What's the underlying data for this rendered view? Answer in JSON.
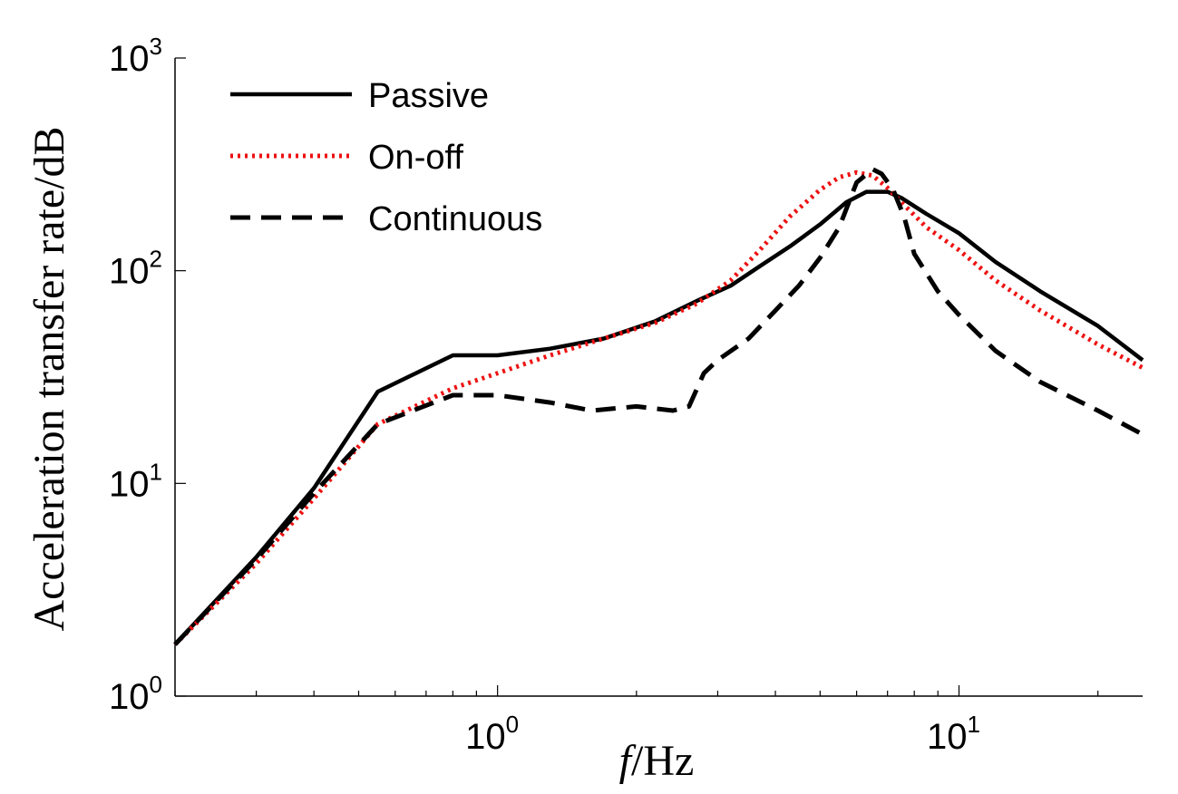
{
  "chart_data": {
    "type": "line",
    "title": "",
    "xlabel_italic": "f",
    "xlabel_rest": "/Hz",
    "ylabel": "Acceleration transfer rate/dB",
    "xscale": "log",
    "yscale": "log",
    "xlim": [
      0.2,
      25
    ],
    "ylim": [
      1,
      1000
    ],
    "x_ticks": [
      {
        "base": "10",
        "exp": "0",
        "value": 1
      },
      {
        "base": "10",
        "exp": "1",
        "value": 10
      }
    ],
    "y_ticks": [
      {
        "base": "10",
        "exp": "0",
        "value": 1
      },
      {
        "base": "10",
        "exp": "1",
        "value": 10
      },
      {
        "base": "10",
        "exp": "2",
        "value": 100
      },
      {
        "base": "10",
        "exp": "3",
        "value": 1000
      }
    ],
    "grid": false,
    "legend_position": "top-left",
    "series": [
      {
        "name": "Passive",
        "color": "#000000",
        "style": "solid",
        "x": [
          0.2,
          0.3,
          0.4,
          0.55,
          0.8,
          1.0,
          1.3,
          1.7,
          2.2,
          2.7,
          3.2,
          3.7,
          4.3,
          5.0,
          5.7,
          6.3,
          7.0,
          7.5,
          8.5,
          10,
          12,
          15,
          20,
          25
        ],
        "y": [
          1.75,
          4.5,
          9.5,
          27,
          40,
          40,
          43,
          48,
          58,
          72,
          85,
          105,
          130,
          165,
          210,
          235,
          235,
          220,
          185,
          150,
          110,
          80,
          55,
          38
        ]
      },
      {
        "name": "On-off",
        "color": "#ee1111",
        "style": "dotted",
        "x": [
          0.2,
          0.3,
          0.4,
          0.55,
          0.8,
          1.0,
          1.3,
          1.7,
          2.2,
          2.7,
          3.2,
          3.7,
          4.3,
          5.0,
          5.5,
          6.0,
          6.5,
          7.0,
          7.5,
          8.5,
          10,
          12,
          15,
          20,
          25
        ],
        "y": [
          1.75,
          4.2,
          8.5,
          19,
          28,
          33,
          40,
          48,
          57,
          70,
          90,
          125,
          180,
          240,
          275,
          290,
          280,
          245,
          210,
          160,
          125,
          90,
          65,
          45,
          35
        ]
      },
      {
        "name": "Continuous",
        "color": "#000000",
        "style": "dashed",
        "x": [
          0.2,
          0.3,
          0.4,
          0.55,
          0.8,
          1.0,
          1.3,
          1.6,
          2.0,
          2.4,
          2.6,
          2.8,
          3.0,
          3.5,
          4.0,
          4.5,
          5.0,
          5.5,
          6.0,
          6.5,
          6.8,
          7.2,
          7.6,
          8.0,
          9.0,
          10,
          12,
          15,
          20,
          25
        ],
        "y": [
          1.75,
          4.4,
          9.0,
          19,
          26,
          26,
          24,
          22,
          23,
          22,
          23,
          33,
          38,
          48,
          65,
          85,
          115,
          160,
          260,
          300,
          285,
          240,
          180,
          120,
          80,
          62,
          42,
          30,
          22,
          17
        ]
      }
    ]
  }
}
